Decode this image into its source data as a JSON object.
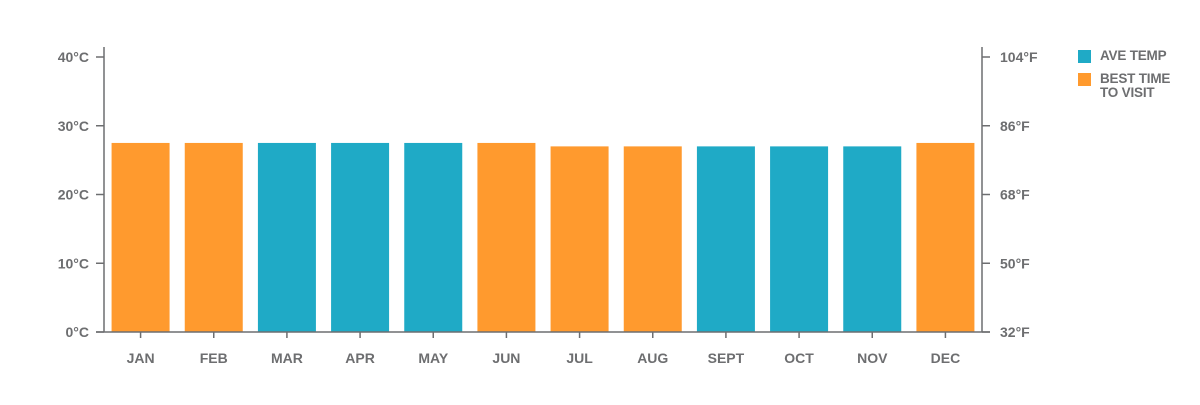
{
  "colors": {
    "ave_temp": "#1faac6",
    "best_time": "#ff9a2e",
    "axis": "#6d6e70"
  },
  "legend": {
    "ave_temp_label": "AVE TEMP",
    "best_time_label": "BEST TIME TO VISIT"
  },
  "chart_data": {
    "type": "bar",
    "categories": [
      "JAN",
      "FEB",
      "MAR",
      "APR",
      "MAY",
      "JUN",
      "JUL",
      "AUG",
      "SEPT",
      "OCT",
      "NOV",
      "DEC"
    ],
    "series": [
      {
        "name": "AVE TEMP",
        "values": [
          27.5,
          27.5,
          27.5,
          27.5,
          27.5,
          27.5,
          27,
          27,
          27,
          27,
          27,
          27.5
        ],
        "best_time_to_visit": [
          true,
          true,
          false,
          false,
          false,
          true,
          true,
          true,
          false,
          false,
          false,
          true
        ]
      }
    ],
    "y_left": {
      "ticks": [
        0,
        10,
        20,
        30,
        40
      ],
      "tick_labels": [
        "0°C",
        "10°C",
        "20°C",
        "30°C",
        "40°C"
      ],
      "ylim": [
        0,
        40
      ]
    },
    "y_right": {
      "tick_labels": [
        "32°F",
        "50°F",
        "68°F",
        "86°F",
        "104°F"
      ]
    },
    "grid": false,
    "legend_position": "right"
  }
}
